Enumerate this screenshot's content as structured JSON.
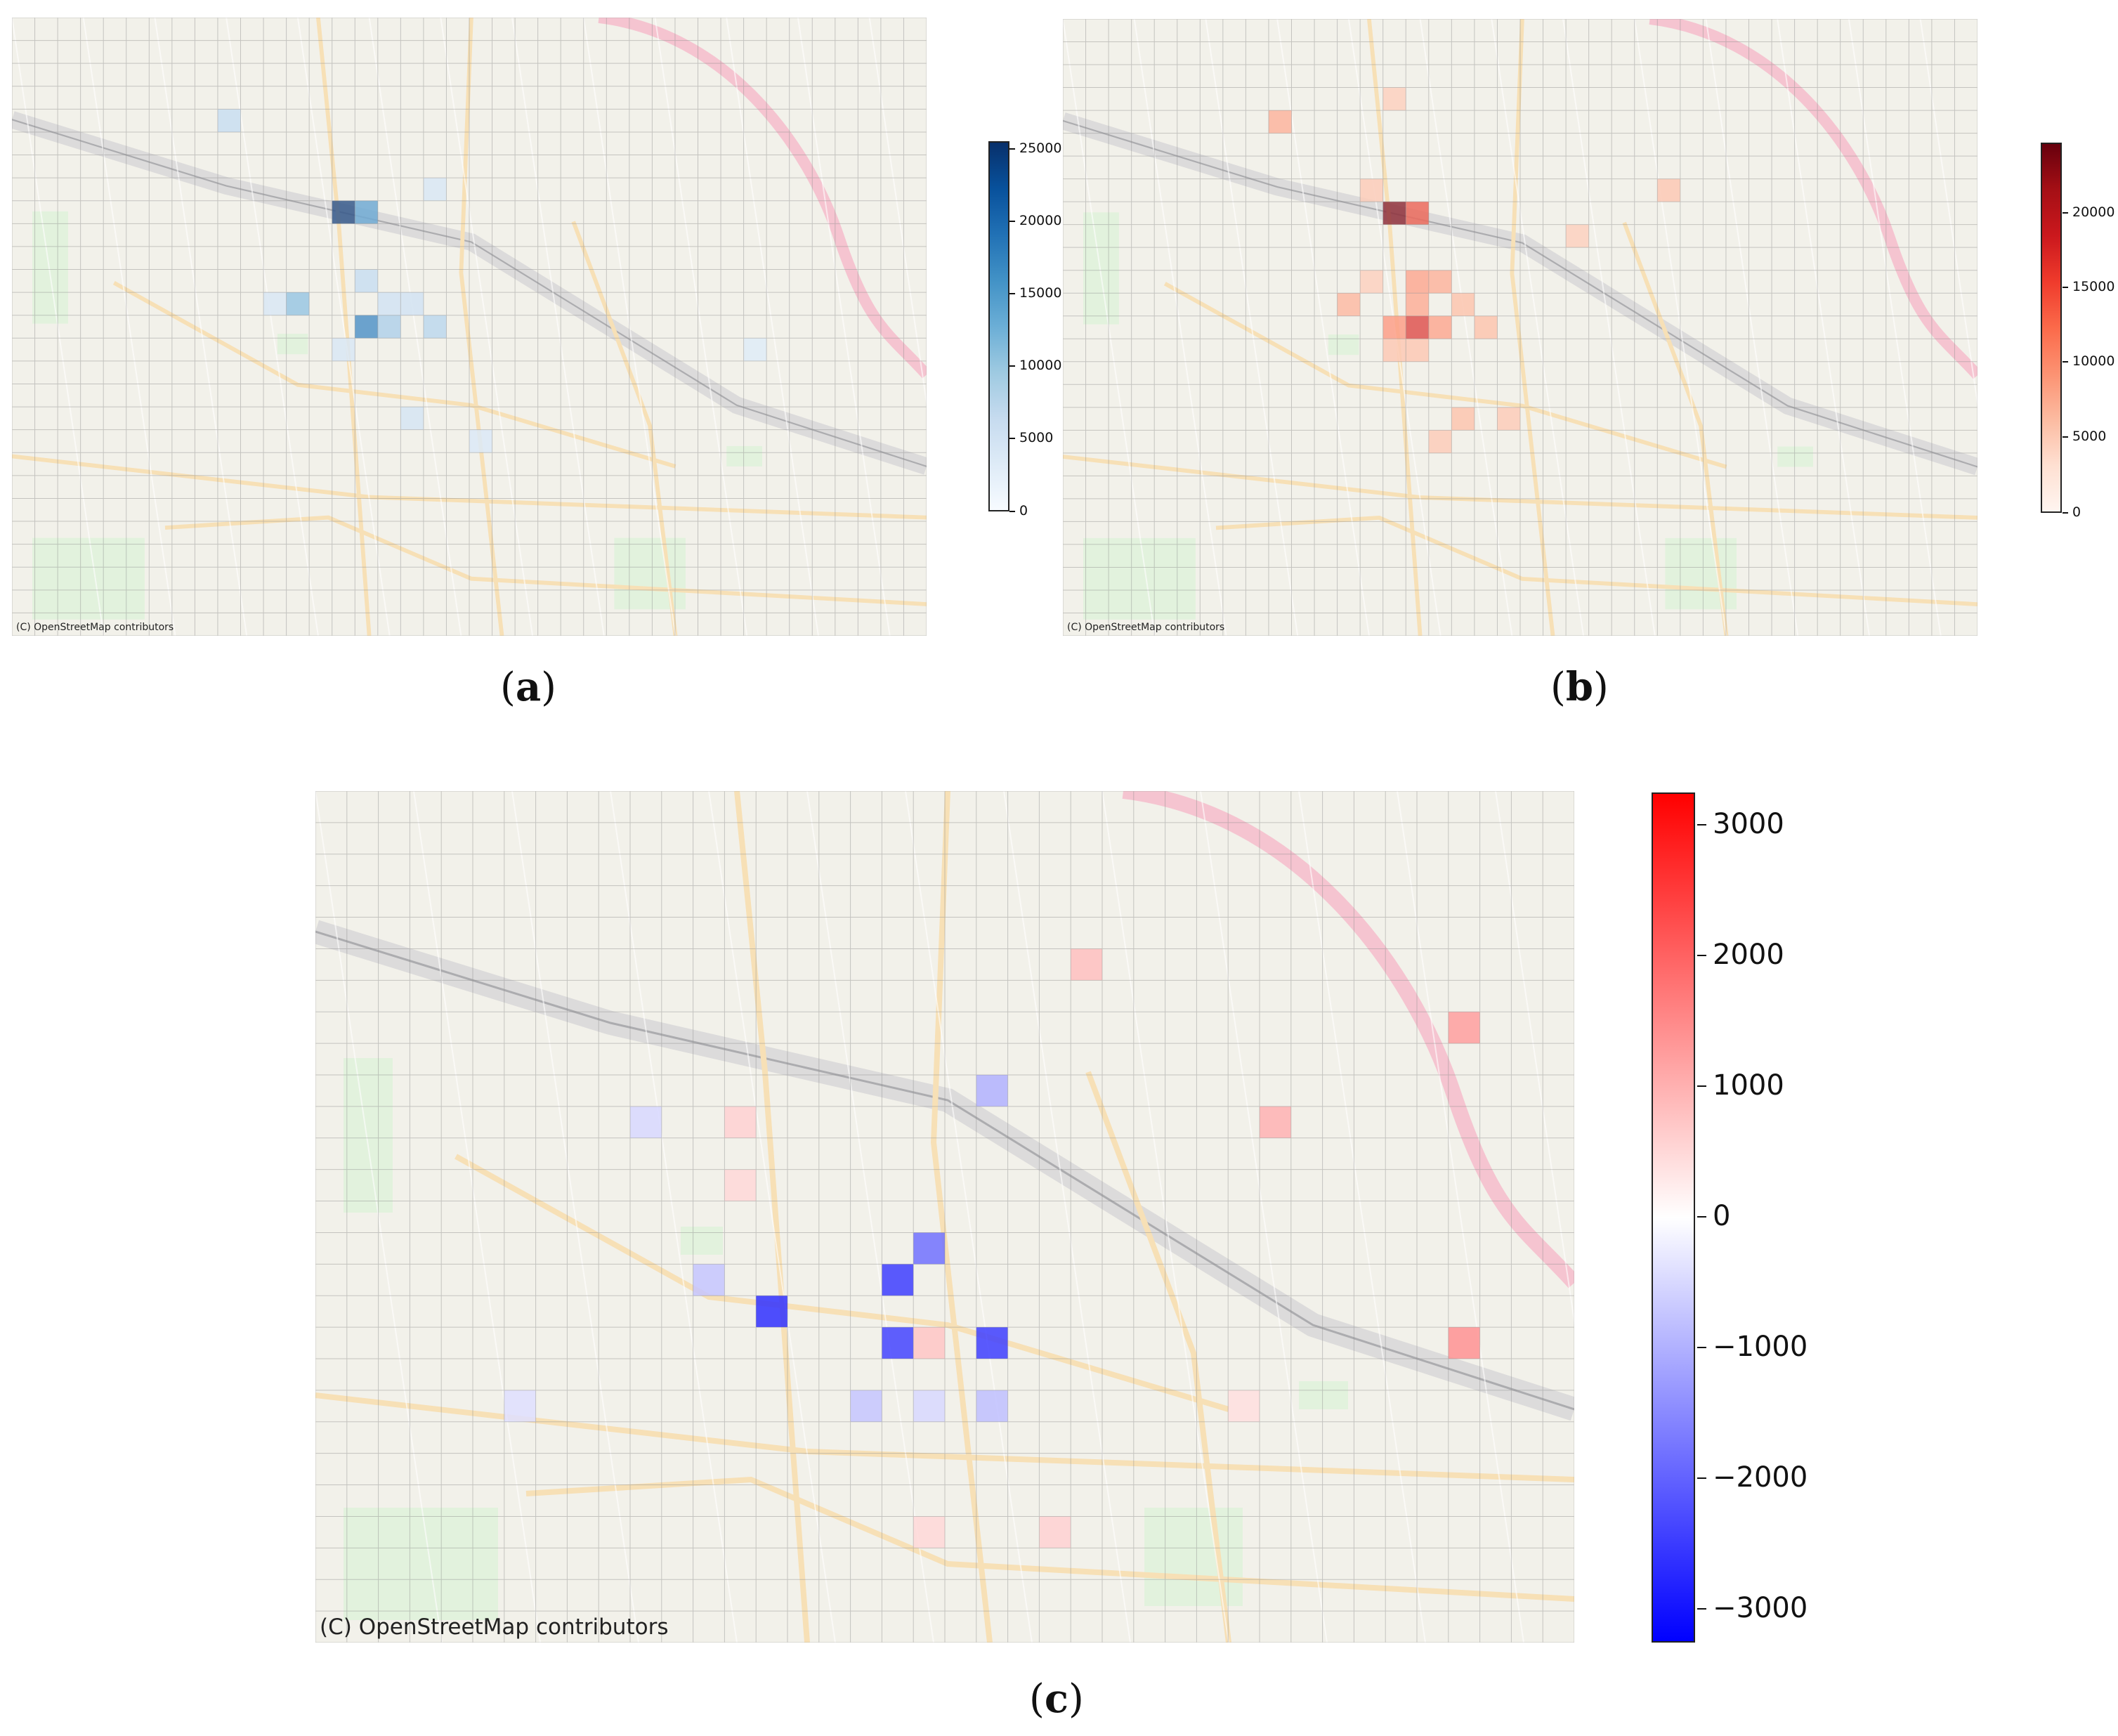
{
  "panels": {
    "a": {
      "caption_open": "(",
      "caption_letter": "a",
      "caption_close": ")",
      "credit": "(C) OpenStreetMap contributors",
      "colorbar": {
        "cmap": "Blues",
        "min": 0,
        "max": 25500,
        "ticks": [
          "25000",
          "20000",
          "15000",
          "10000",
          "5000",
          "0"
        ],
        "tick_values": [
          25000,
          20000,
          15000,
          10000,
          5000,
          0
        ]
      },
      "hot_cells": [
        {
          "c": 14,
          "r": 8,
          "v": 25000
        },
        {
          "c": 15,
          "r": 8,
          "v": 15000
        },
        {
          "c": 15,
          "r": 13,
          "v": 18000
        },
        {
          "c": 12,
          "r": 12,
          "v": 11000
        },
        {
          "c": 18,
          "r": 13,
          "v": 8000
        },
        {
          "c": 16,
          "r": 13,
          "v": 9000
        },
        {
          "c": 15,
          "r": 11,
          "v": 7000
        },
        {
          "c": 17,
          "r": 12,
          "v": 6000
        },
        {
          "c": 9,
          "r": 4,
          "v": 7000
        },
        {
          "c": 18,
          "r": 7,
          "v": 5000
        },
        {
          "c": 16,
          "r": 12,
          "v": 6000
        },
        {
          "c": 14,
          "r": 14,
          "v": 5000
        },
        {
          "c": 17,
          "r": 17,
          "v": 5500
        },
        {
          "c": 20,
          "r": 18,
          "v": 4500
        },
        {
          "c": 11,
          "r": 12,
          "v": 5000
        },
        {
          "c": 32,
          "r": 14,
          "v": 4000
        }
      ]
    },
    "b": {
      "caption_open": "(",
      "caption_letter": "b",
      "caption_close": ")",
      "credit": "(C) OpenStreetMap contributors",
      "colorbar": {
        "cmap": "Reds",
        "min": 0,
        "max": 25000,
        "ticks": [
          "20000",
          "15000",
          "10000",
          "5000",
          "0"
        ],
        "tick_values": [
          20000,
          15000,
          10000,
          5000,
          0
        ]
      },
      "hot_cells": [
        {
          "c": 14,
          "r": 8,
          "v": 24000
        },
        {
          "c": 15,
          "r": 8,
          "v": 15000
        },
        {
          "c": 15,
          "r": 13,
          "v": 17000
        },
        {
          "c": 14,
          "r": 13,
          "v": 10000
        },
        {
          "c": 16,
          "r": 13,
          "v": 9000
        },
        {
          "c": 9,
          "r": 4,
          "v": 8000
        },
        {
          "c": 15,
          "r": 11,
          "v": 9000
        },
        {
          "c": 16,
          "r": 11,
          "v": 8000
        },
        {
          "c": 15,
          "r": 12,
          "v": 8500
        },
        {
          "c": 12,
          "r": 12,
          "v": 7500
        },
        {
          "c": 17,
          "r": 12,
          "v": 6500
        },
        {
          "c": 18,
          "r": 13,
          "v": 6500
        },
        {
          "c": 17,
          "r": 17,
          "v": 6500
        },
        {
          "c": 19,
          "r": 17,
          "v": 5500
        },
        {
          "c": 13,
          "r": 7,
          "v": 5500
        },
        {
          "c": 26,
          "r": 7,
          "v": 6000
        },
        {
          "c": 22,
          "r": 9,
          "v": 5000
        },
        {
          "c": 14,
          "r": 14,
          "v": 6000
        },
        {
          "c": 15,
          "r": 14,
          "v": 6000
        },
        {
          "c": 13,
          "r": 11,
          "v": 5000
        },
        {
          "c": 16,
          "r": 18,
          "v": 5500
        },
        {
          "c": 14,
          "r": 3,
          "v": 5000
        }
      ]
    },
    "c": {
      "caption_open": "(",
      "caption_letter": "c",
      "caption_close": ")",
      "credit": "(C) OpenStreetMap contributors",
      "colorbar": {
        "cmap": "bwr",
        "min": -3250,
        "max": 3250,
        "ticks": [
          "3000",
          "2000",
          "1000",
          "0",
          "−1000",
          "−2000",
          "−3000"
        ],
        "tick_values": [
          3000,
          2000,
          1000,
          0,
          -1000,
          -2000,
          -3000
        ]
      },
      "hot_cells": [
        {
          "c": 14,
          "r": 16,
          "v": -3200
        },
        {
          "c": 18,
          "r": 15,
          "v": -3000
        },
        {
          "c": 18,
          "r": 17,
          "v": -2900
        },
        {
          "c": 21,
          "r": 17,
          "v": -3000
        },
        {
          "c": 19,
          "r": 14,
          "v": -2200
        },
        {
          "c": 21,
          "r": 9,
          "v": -1200
        },
        {
          "c": 12,
          "r": 15,
          "v": -900
        },
        {
          "c": 17,
          "r": 19,
          "v": -900
        },
        {
          "c": 21,
          "r": 19,
          "v": -1000
        },
        {
          "c": 10,
          "r": 10,
          "v": -600
        },
        {
          "c": 6,
          "r": 19,
          "v": -500
        },
        {
          "c": 19,
          "r": 19,
          "v": -600
        },
        {
          "c": 36,
          "r": 17,
          "v": 1700
        },
        {
          "c": 36,
          "r": 7,
          "v": 1500
        },
        {
          "c": 30,
          "r": 10,
          "v": 1200
        },
        {
          "c": 24,
          "r": 5,
          "v": 1000
        },
        {
          "c": 13,
          "r": 10,
          "v": 700
        },
        {
          "c": 19,
          "r": 17,
          "v": 900
        },
        {
          "c": 23,
          "r": 23,
          "v": 700
        },
        {
          "c": 19,
          "r": 23,
          "v": 600
        },
        {
          "c": 13,
          "r": 12,
          "v": 600
        },
        {
          "c": 29,
          "r": 19,
          "v": 500
        }
      ]
    }
  }
}
